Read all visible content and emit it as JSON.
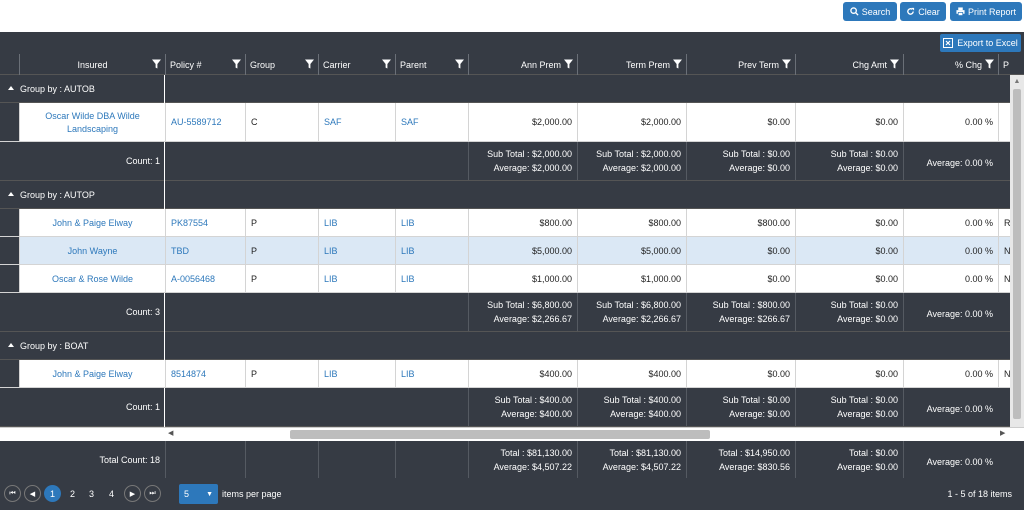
{
  "toolbar": {
    "search_label": "Search",
    "clear_label": "Clear",
    "print_label": "Print Report",
    "export_label": "Export to Excel",
    "accent": "#2d78bb"
  },
  "columns": [
    "Insured",
    "Policy #",
    "Group",
    "Carrier",
    "Parent",
    "Ann Prem",
    "Term Prem",
    "Prev Term",
    "Chg Amt",
    "% Chg",
    "P"
  ],
  "groups": [
    {
      "label": "Group by : AUTOB",
      "rows": [
        {
          "insured_line1": "Oscar Wilde DBA Wilde",
          "insured_line2": "Landscaping",
          "policy": "AU-5589712",
          "group": "C",
          "carrier": "SAF",
          "parent": "SAF",
          "ann_prem": "$2,000.00",
          "term_prem": "$2,000.00",
          "prev_term": "$0.00",
          "chg_amt": "$0.00",
          "pct_chg": "0.00 %",
          "p": ""
        }
      ],
      "count": "Count: 1",
      "subtotals": {
        "ann_prem": [
          "Sub Total : $2,000.00",
          "Average: $2,000.00"
        ],
        "term_prem": [
          "Sub Total : $2,000.00",
          "Average: $2,000.00"
        ],
        "prev_term": [
          "Sub Total : $0.00",
          "Average: $0.00"
        ],
        "chg_amt": [
          "Sub Total : $0.00",
          "Average: $0.00"
        ],
        "pct_chg": [
          "",
          "Average: 0.00 %"
        ]
      }
    },
    {
      "label": "Group by : AUTOP",
      "rows": [
        {
          "insured_line1": "John & Paige Elway",
          "insured_line2": "",
          "policy": "PK87554",
          "group": "P",
          "carrier": "LIB",
          "parent": "LIB",
          "ann_prem": "$800.00",
          "term_prem": "$800.00",
          "prev_term": "$800.00",
          "chg_amt": "$0.00",
          "pct_chg": "0.00 %",
          "p": "R"
        },
        {
          "insured_line1": "John Wayne",
          "insured_line2": "",
          "policy": "TBD",
          "group": "P",
          "carrier": "LIB",
          "parent": "LIB",
          "ann_prem": "$5,000.00",
          "term_prem": "$5,000.00",
          "prev_term": "$0.00",
          "chg_amt": "$0.00",
          "pct_chg": "0.00 %",
          "p": "N"
        },
        {
          "insured_line1": "Oscar & Rose Wilde",
          "insured_line2": "",
          "policy": "A-0056468",
          "group": "P",
          "carrier": "LIB",
          "parent": "LIB",
          "ann_prem": "$1,000.00",
          "term_prem": "$1,000.00",
          "prev_term": "$0.00",
          "chg_amt": "$0.00",
          "pct_chg": "0.00 %",
          "p": "N"
        }
      ],
      "count": "Count: 3",
      "subtotals": {
        "ann_prem": [
          "Sub Total : $6,800.00",
          "Average: $2,266.67"
        ],
        "term_prem": [
          "Sub Total : $6,800.00",
          "Average: $2,266.67"
        ],
        "prev_term": [
          "Sub Total : $800.00",
          "Average: $266.67"
        ],
        "chg_amt": [
          "Sub Total : $0.00",
          "Average: $0.00"
        ],
        "pct_chg": [
          "",
          "Average: 0.00 %"
        ]
      }
    },
    {
      "label": "Group by : BOAT",
      "rows": [
        {
          "insured_line1": "John & Paige Elway",
          "insured_line2": "",
          "policy": "8514874",
          "group": "P",
          "carrier": "LIB",
          "parent": "LIB",
          "ann_prem": "$400.00",
          "term_prem": "$400.00",
          "prev_term": "$0.00",
          "chg_amt": "$0.00",
          "pct_chg": "0.00 %",
          "p": "N"
        }
      ],
      "count": "Count: 1",
      "subtotals": {
        "ann_prem": [
          "Sub Total : $400.00",
          "Average: $400.00"
        ],
        "term_prem": [
          "Sub Total : $400.00",
          "Average: $400.00"
        ],
        "prev_term": [
          "Sub Total : $0.00",
          "Average: $0.00"
        ],
        "chg_amt": [
          "Sub Total : $0.00",
          "Average: $0.00"
        ],
        "pct_chg": [
          "",
          "Average: 0.00 %"
        ]
      }
    }
  ],
  "footer": {
    "total_count": "Total Count: 18",
    "ann_prem": [
      "Total : $81,130.00",
      "Average: $4,507.22"
    ],
    "term_prem": [
      "Total : $81,130.00",
      "Average: $4,507.22"
    ],
    "prev_term": [
      "Total : $14,950.00",
      "Average: $830.56"
    ],
    "chg_amt": [
      "Total : $0.00",
      "Average: $0.00"
    ],
    "pct_chg": [
      "",
      "Average: 0.00 %"
    ]
  },
  "pager": {
    "pages": [
      "1",
      "2",
      "3",
      "4"
    ],
    "current": "1",
    "page_size": "5",
    "items_per_page_label": "items per page",
    "range_info": "1 - 5 of 18 items"
  }
}
